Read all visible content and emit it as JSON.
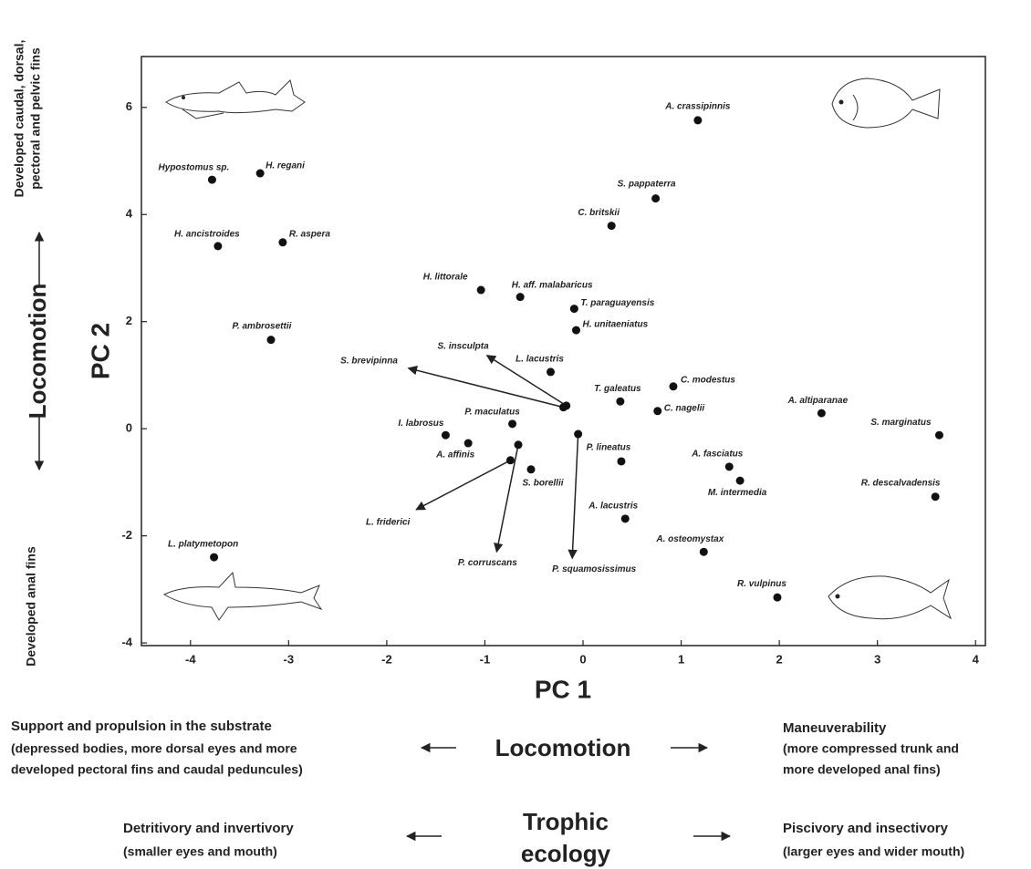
{
  "chart_data": {
    "type": "scatter",
    "x_label": "PC 1",
    "y_label": "PC 2",
    "y_side_label": "Locomotion",
    "y_top_note": [
      "Developed caudal, dorsal,",
      "pectoral and pelvic fins"
    ],
    "y_bottom_note": "Developed anal fins",
    "xlim": [
      -4.5,
      4.1
    ],
    "ylim": [
      -4.05,
      6.95
    ],
    "xticks": [
      -4,
      -3,
      -2,
      -1,
      0,
      1,
      2,
      3,
      4
    ],
    "yticks": [
      -4,
      -2,
      0,
      2,
      4,
      6
    ],
    "color": "#111111",
    "points": [
      {
        "label": "A. crassipinnis",
        "x": 1.17,
        "y": 5.76
      },
      {
        "label": "Hypostomus sp.",
        "x": -3.78,
        "y": 4.65
      },
      {
        "label": "H. regani",
        "x": -3.29,
        "y": 4.77
      },
      {
        "label": "S. pappaterra",
        "x": 0.74,
        "y": 4.3
      },
      {
        "label": "C. britskii",
        "x": 0.29,
        "y": 3.79
      },
      {
        "label": "H. ancistroides",
        "x": -3.72,
        "y": 3.41
      },
      {
        "label": "R. aspera",
        "x": -3.06,
        "y": 3.48
      },
      {
        "label": "H. littorale",
        "x": -1.04,
        "y": 2.59
      },
      {
        "label": "H. aff. malabaricus",
        "x": -0.64,
        "y": 2.46
      },
      {
        "label": "T. paraguayensis",
        "x": -0.09,
        "y": 2.24
      },
      {
        "label": "H. unitaeniatus",
        "x": -0.07,
        "y": 1.84
      },
      {
        "label": "P. ambrosettii",
        "x": -3.18,
        "y": 1.66
      },
      {
        "label": "L. lacustris",
        "x": -0.33,
        "y": 1.06
      },
      {
        "label": "C. modestus",
        "x": 0.92,
        "y": 0.79
      },
      {
        "label": "T. galeatus",
        "x": 0.38,
        "y": 0.51
      },
      {
        "label": "C. nagelii",
        "x": 0.76,
        "y": 0.33
      },
      {
        "label": "A. altiparanae",
        "x": 2.43,
        "y": 0.29
      },
      {
        "label": "S. marginatus",
        "x": 3.63,
        "y": -0.12
      },
      {
        "label": "P. maculatus",
        "x": -0.72,
        "y": 0.09
      },
      {
        "label": "I. labrosus",
        "x": -1.4,
        "y": -0.12
      },
      {
        "label": "A. affinis",
        "x": -1.17,
        "y": -0.27
      },
      {
        "label": "S. borellii",
        "x": -0.53,
        "y": -0.76
      },
      {
        "label": "P. lineatus",
        "x": 0.39,
        "y": -0.61
      },
      {
        "label": "A. fasciatus",
        "x": 1.49,
        "y": -0.71
      },
      {
        "label": "M. intermedia",
        "x": 1.6,
        "y": -0.97
      },
      {
        "label": "R. descalvadensis",
        "x": 3.59,
        "y": -1.27
      },
      {
        "label": "A. lacustris",
        "x": 0.43,
        "y": -1.68
      },
      {
        "label": "A. osteomystax",
        "x": 1.23,
        "y": -2.3
      },
      {
        "label": "L. platymetopon",
        "x": -3.76,
        "y": -2.4
      },
      {
        "label": "R. vulpinus",
        "x": 1.98,
        "y": -3.15
      }
    ],
    "arrows": [
      {
        "label": "S. brevipinna",
        "from": [
          -0.2,
          0.4
        ],
        "to": [
          -1.78,
          1.13
        ]
      },
      {
        "label": "S. insculpta",
        "from": [
          -0.17,
          0.43
        ],
        "to": [
          -0.98,
          1.37
        ]
      },
      {
        "label": "L. friderici",
        "from": [
          -0.74,
          -0.59
        ],
        "to": [
          -1.7,
          -1.51
        ]
      },
      {
        "label": "P. corruscans",
        "from": [
          -0.66,
          -0.3
        ],
        "to": [
          -0.88,
          -2.3
        ]
      },
      {
        "label": "P. squamosissimus",
        "from": [
          -0.05,
          -0.1
        ],
        "to": [
          -0.11,
          -2.42
        ]
      }
    ]
  },
  "footer": {
    "locomotion": {
      "title": "Locomotion",
      "left": [
        "Support and propulsion in the substrate",
        "(depressed bodies, more dorsal eyes and more",
        "developed pectoral fins and caudal peduncules)"
      ],
      "right": [
        "Maneuverability",
        "(more compressed trunk and",
        "more developed anal fins)"
      ]
    },
    "trophic": {
      "title": [
        "Trophic",
        "ecology"
      ],
      "left": [
        "Detritivory and invertivory",
        "(smaller eyes and mouth)"
      ],
      "right": [
        "Piscivory and insectivory",
        "(larger eyes and wider mouth)"
      ]
    }
  }
}
